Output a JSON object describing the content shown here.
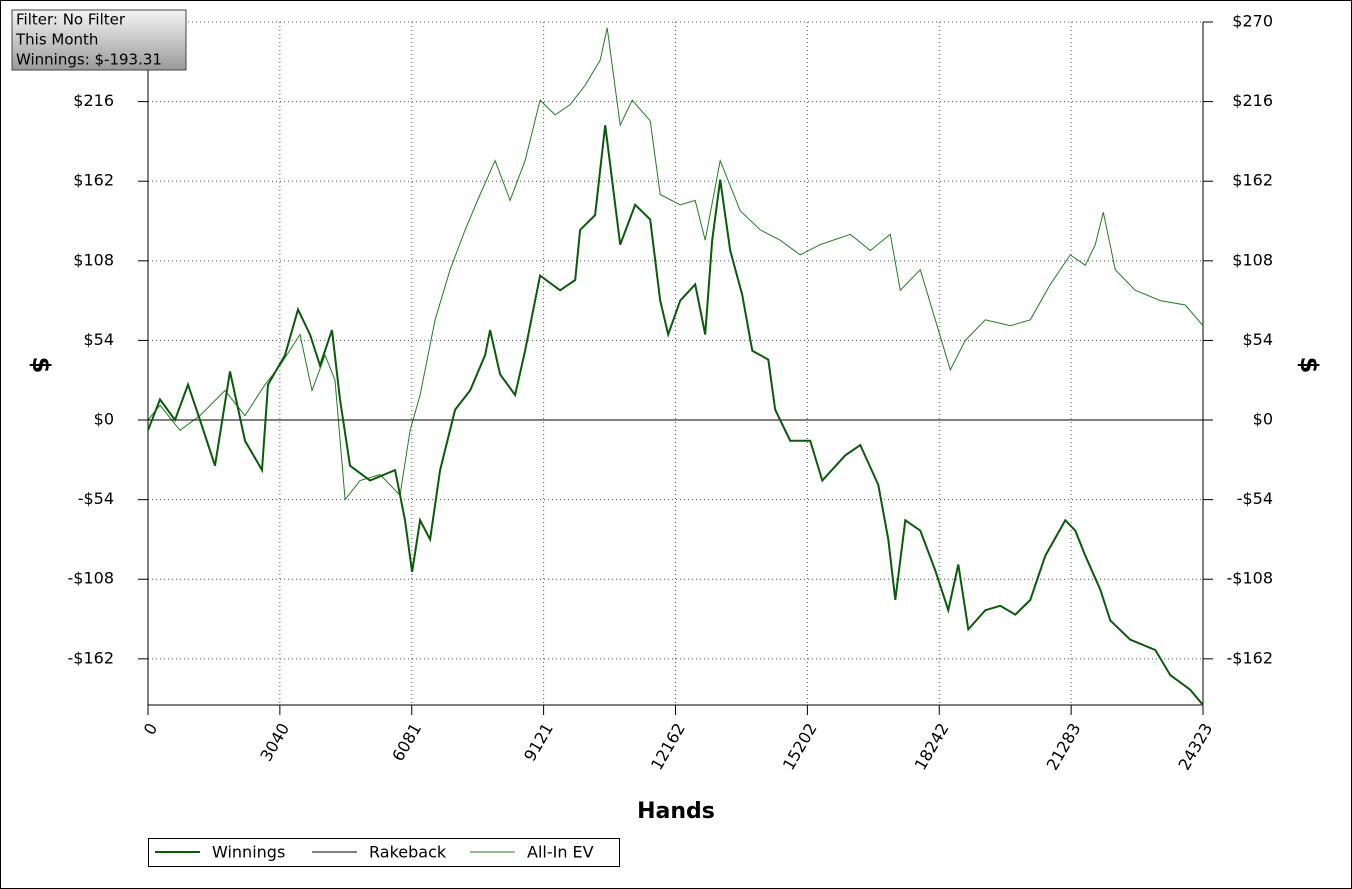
{
  "chart_data": {
    "type": "line",
    "annotations": [
      "Filter: No Filter",
      "This Month",
      "Winnings: $-193.31"
    ],
    "xlabel": "Hands",
    "ylabel": "$",
    "y2label": "$",
    "xlim": [
      0,
      24323
    ],
    "xticks": [
      0,
      3040,
      6081,
      9121,
      12162,
      15202,
      18242,
      21283,
      24323
    ],
    "ylim": [
      -193.31,
      270
    ],
    "yticks": [
      {
        "value": -162,
        "label": "-$162"
      },
      {
        "value": -108,
        "label": "-$108"
      },
      {
        "value": -54,
        "label": "-$54"
      },
      {
        "value": 0,
        "label": "$0"
      },
      {
        "value": 54,
        "label": "$54"
      },
      {
        "value": 108,
        "label": "$108"
      },
      {
        "value": 162,
        "label": "$162"
      },
      {
        "value": 216,
        "label": "$216"
      },
      {
        "value": 270,
        "label": "$270"
      }
    ],
    "grid": true,
    "legend": "bottom-left",
    "series": [
      {
        "name": "Winnings",
        "color": "#0b5a0b",
        "x": [
          0,
          277,
          623,
          922,
          1199,
          1545,
          1891,
          2237,
          2629,
          2767,
          3159,
          3459,
          3736,
          3966,
          4243,
          4427,
          4658,
          5119,
          5696,
          5926,
          6088,
          6273,
          6503,
          6734,
          7080,
          7426,
          7772,
          7887,
          8118,
          8464,
          8694,
          9040,
          9502,
          9848,
          9963,
          10309,
          10540,
          10886,
          11232,
          11578,
          11809,
          11993,
          12270,
          12616,
          12846,
          13008,
          13192,
          13423,
          13700,
          13931,
          14300,
          14461,
          14807,
          15268,
          15545,
          16075,
          16421,
          16836,
          17067,
          17228,
          17459,
          17805,
          18151,
          18451,
          18681,
          18912,
          19304,
          19650,
          19996,
          20342,
          20688,
          21149,
          21379,
          21610,
          21956,
          22186,
          22647,
          23224,
          23570,
          24031,
          24323
        ],
        "values": [
          -7,
          14,
          0,
          24,
          0,
          -31,
          33,
          -14,
          -34,
          24,
          44,
          75,
          58,
          37,
          61,
          14,
          -31,
          -41,
          -34,
          -68,
          -103,
          -68,
          -81,
          -34,
          7,
          20,
          44,
          61,
          31,
          17,
          47,
          98,
          88,
          95,
          129,
          139,
          200,
          119,
          146,
          136,
          81,
          58,
          81,
          92,
          58,
          122,
          163,
          115,
          85,
          47,
          41,
          7,
          -14,
          -14,
          -41,
          -24,
          -17,
          -44,
          -81,
          -122,
          -68,
          -75,
          -102,
          -129,
          -98,
          -142,
          -129,
          -126,
          -132,
          -122,
          -92,
          -68,
          -75,
          -92,
          -115,
          -136,
          -149,
          -156,
          -173,
          -183,
          -193.31
        ]
      },
      {
        "name": "Rakeback",
        "color": "#000000",
        "x": [
          0,
          24323
        ],
        "values": [
          0,
          0
        ]
      },
      {
        "name": "All-In EV",
        "color": "#1f7f1f",
        "x": [
          0,
          277,
          738,
          1199,
          1776,
          2237,
          2698,
          3044,
          3505,
          3782,
          4082,
          4312,
          4543,
          4889,
          5350,
          5811,
          6042,
          6273,
          6619,
          6965,
          7311,
          7657,
          8003,
          8348,
          8694,
          9040,
          9386,
          9732,
          10078,
          10424,
          10586,
          10886,
          11163,
          11578,
          11809,
          12270,
          12616,
          12846,
          13192,
          13654,
          14115,
          14576,
          15037,
          15499,
          16191,
          16652,
          17113,
          17344,
          17805,
          18151,
          18497,
          18843,
          19304,
          19880,
          20342,
          20803,
          21264,
          21610,
          21841,
          22025,
          22302,
          22763,
          23339,
          23916,
          24323
        ],
        "values": [
          0,
          10,
          -7,
          3,
          20,
          3,
          24,
          37,
          58,
          20,
          44,
          27,
          -54,
          -41,
          -37,
          -51,
          -7,
          17,
          68,
          102,
          129,
          153,
          176,
          149,
          176,
          217,
          207,
          214,
          227,
          244,
          266,
          200,
          217,
          203,
          153,
          146,
          149,
          122,
          176,
          142,
          129,
          122,
          112,
          119,
          126,
          115,
          126,
          88,
          102,
          68,
          34,
          54,
          68,
          64,
          68,
          92,
          112,
          105,
          119,
          141,
          102,
          88,
          81,
          78,
          64
        ]
      }
    ]
  }
}
